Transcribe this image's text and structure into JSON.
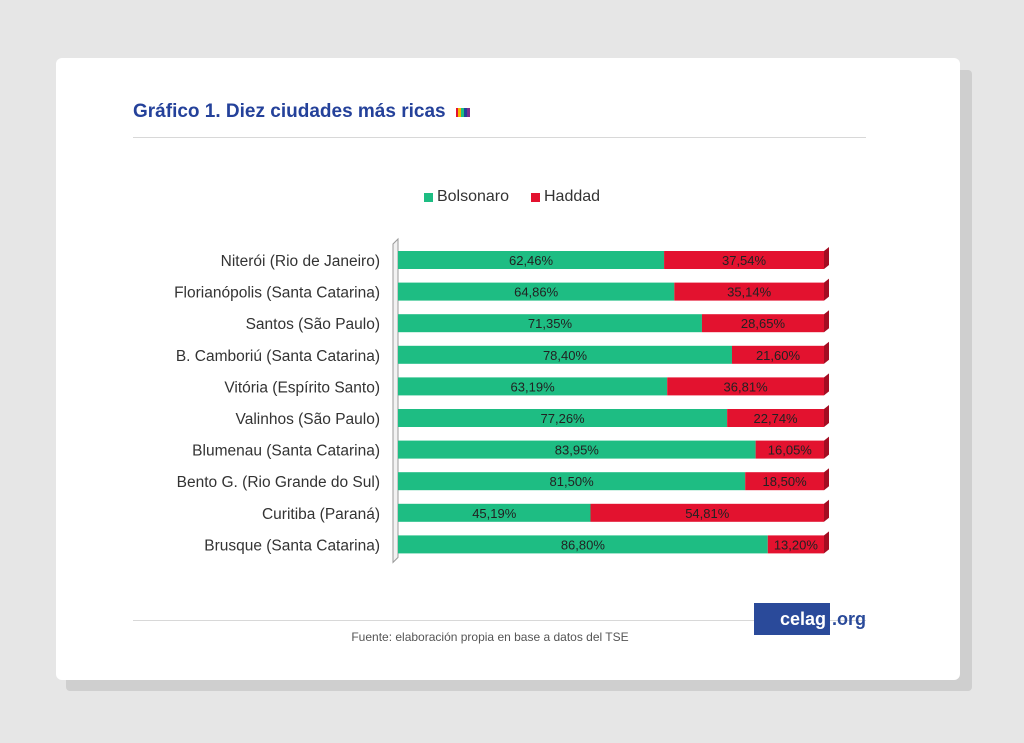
{
  "title": "Gráfico 1. Diez ciudades más ricas",
  "source": "Fuente: elaboración propia en base a datos del TSE",
  "logo": {
    "main": "celag",
    "suffix": ".org"
  },
  "colors": {
    "bolsonaro": "#1ebd83",
    "haddad": "#e3122f",
    "title": "#24419a",
    "logo": "#2a4a9a"
  },
  "chart_data": {
    "type": "bar",
    "orientation": "horizontal",
    "stacked": true,
    "percent": true,
    "categories": [
      "Niterói (Rio de Janeiro)",
      "Florianópolis (Santa Catarina)",
      "Santos (São Paulo)",
      "B. Camboriú (Santa Catarina)",
      "Vitória (Espírito Santo)",
      "Valinhos (São Paulo)",
      "Blumenau (Santa Catarina)",
      "Bento G. (Rio Grande do Sul)",
      "Curitiba (Paraná)",
      "Brusque (Santa Catarina)"
    ],
    "series": [
      {
        "name": "Bolsonaro",
        "color": "#1ebd83",
        "values": [
          62.46,
          64.86,
          71.35,
          78.4,
          63.19,
          77.26,
          83.95,
          81.5,
          45.19,
          86.8
        ],
        "labels": [
          "62,46%",
          "64,86%",
          "71,35%",
          "78,40%",
          "63,19%",
          "77,26%",
          "83,95%",
          "81,50%",
          "45,19%",
          "86,80%"
        ]
      },
      {
        "name": "Haddad",
        "color": "#e3122f",
        "values": [
          37.54,
          35.14,
          28.65,
          21.6,
          36.81,
          22.74,
          16.05,
          18.5,
          54.81,
          13.2
        ],
        "labels": [
          "37,54%",
          "35,14%",
          "28,65%",
          "21,60%",
          "36,81%",
          "22,74%",
          "16,05%",
          "18,50%",
          "54,81%",
          "13,20%"
        ]
      }
    ],
    "xlim": [
      0,
      100
    ],
    "legend": "top-center",
    "grid": false
  }
}
